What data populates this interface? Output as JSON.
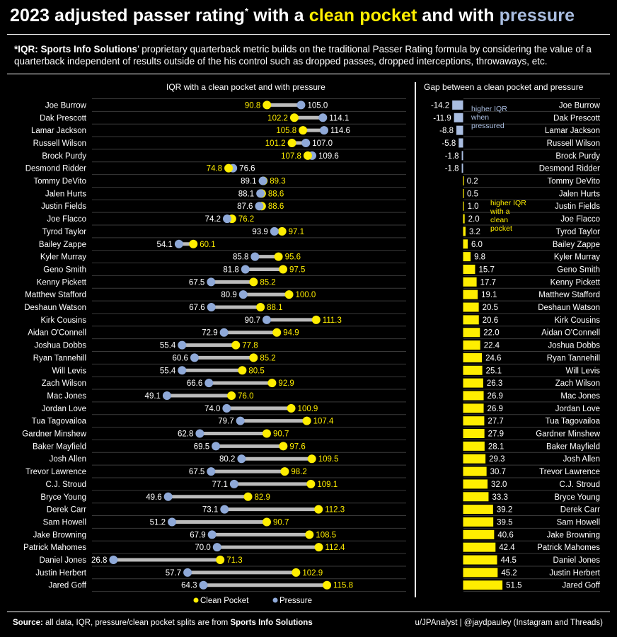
{
  "header": {
    "title_a": "2023 adjusted passer rating",
    "title_star": "*",
    "title_b": " with a ",
    "title_clean": "clean pocket",
    "title_c": " and with ",
    "title_pressure": "pressure",
    "subtitle_lead": "*IQR: Sports Info Solutions",
    "subtitle_text": "’ proprietary quarterback metric builds on the traditional Passer Rating formula by considering the value of a quarterback independent of results outside of the his control such as dropped passes, dropped interceptions, throwaways, etc."
  },
  "left_panel_title": "IQR with a clean pocket and with pressure",
  "right_panel_title": "Gap between a clean pocket  and pressure",
  "legend": {
    "clean": "Clean Pocket",
    "pressure": "Pressure"
  },
  "annotations": {
    "pressured": [
      "higher IQR",
      "when",
      "pressured"
    ],
    "clean": [
      "higher IQR",
      "with a",
      "clean",
      "pocket"
    ]
  },
  "footer": {
    "source_label": "Source:",
    "source_text": " all data, IQR, pressure/clean pocket splits are from ",
    "source_org": "Sports Info Solutions",
    "credit": "u/JPAnalyst  |  @jaydpauley (Instagram and Threads)"
  },
  "colors": {
    "clean": "#ffee00",
    "pressure": "#8fa9d8",
    "connector": "#bbbbbb",
    "gap_negative": "#a9bde0",
    "gap_positive": "#ffee00"
  },
  "chart_data": [
    {
      "type": "dumbbell",
      "title": "IQR with a clean pocket and with pressure",
      "series": [
        {
          "name": "Clean Pocket",
          "values": [
            90.8,
            102.2,
            105.8,
            101.2,
            107.8,
            74.8,
            89.3,
            88.6,
            88.6,
            76.2,
            97.1,
            60.1,
            95.6,
            97.5,
            85.2,
            100.0,
            88.1,
            111.3,
            94.9,
            77.8,
            85.2,
            80.5,
            92.9,
            76.0,
            100.9,
            107.4,
            90.7,
            97.6,
            109.5,
            98.2,
            109.1,
            82.9,
            112.3,
            90.7,
            108.5,
            112.4,
            71.3,
            102.9,
            115.8
          ]
        },
        {
          "name": "Pressure",
          "values": [
            105.0,
            114.1,
            114.6,
            107.0,
            109.6,
            76.6,
            89.1,
            88.1,
            87.6,
            74.2,
            93.9,
            54.1,
            85.8,
            81.8,
            67.5,
            80.9,
            67.6,
            90.7,
            72.9,
            55.4,
            60.6,
            55.4,
            66.6,
            49.1,
            74.0,
            79.7,
            62.8,
            69.5,
            80.2,
            67.5,
            77.1,
            49.6,
            73.1,
            51.2,
            67.9,
            70.0,
            26.8,
            57.7,
            64.3
          ]
        }
      ],
      "categories": [
        "Joe Burrow",
        "Dak Prescott",
        "Lamar Jackson",
        "Russell Wilson",
        "Brock Purdy",
        "Desmond Ridder",
        "Tommy DeVito",
        "Jalen Hurts",
        "Justin Fields",
        "Joe Flacco",
        "Tyrod Taylor",
        "Bailey Zappe",
        "Kyler Murray",
        "Geno Smith",
        "Kenny Pickett",
        "Matthew Stafford",
        "Deshaun Watson",
        "Kirk Cousins",
        "Aidan O'Connell",
        "Joshua Dobbs",
        "Ryan Tannehill",
        "Will Levis",
        "Zach Wilson",
        "Mac Jones",
        "Jordan Love",
        "Tua Tagovailoa",
        "Gardner Minshew",
        "Baker Mayfield",
        "Josh Allen",
        "Trevor Lawrence",
        "C.J. Stroud",
        "Bryce Young",
        "Derek Carr",
        "Sam Howell",
        "Jake Browning",
        "Patrick Mahomes",
        "Daniel Jones",
        "Justin Herbert",
        "Jared Goff"
      ],
      "xlim": [
        20,
        120
      ]
    },
    {
      "type": "bar",
      "title": "Gap between a clean pocket  and pressure",
      "categories": [
        "Joe Burrow",
        "Dak Prescott",
        "Lamar Jackson",
        "Russell Wilson",
        "Brock Purdy",
        "Desmond Ridder",
        "Tommy DeVito",
        "Jalen Hurts",
        "Justin Fields",
        "Joe Flacco",
        "Tyrod Taylor",
        "Bailey Zappe",
        "Kyler Murray",
        "Geno Smith",
        "Kenny Pickett",
        "Matthew Stafford",
        "Deshaun Watson",
        "Kirk Cousins",
        "Aidan O'Connell",
        "Joshua Dobbs",
        "Ryan Tannehill",
        "Will Levis",
        "Zach Wilson",
        "Mac Jones",
        "Jordan Love",
        "Tua Tagovailoa",
        "Gardner Minshew",
        "Baker Mayfield",
        "Josh Allen",
        "Trevor Lawrence",
        "C.J. Stroud",
        "Bryce Young",
        "Derek Carr",
        "Sam Howell",
        "Jake Browning",
        "Patrick Mahomes",
        "Daniel Jones",
        "Justin Herbert",
        "Jared Goff"
      ],
      "values": [
        -14.2,
        -11.9,
        -8.8,
        -5.8,
        -1.8,
        -1.8,
        0.2,
        0.5,
        1.0,
        2.0,
        3.2,
        6.0,
        9.8,
        15.7,
        17.7,
        19.1,
        20.5,
        20.6,
        22.0,
        22.4,
        24.6,
        25.1,
        26.3,
        26.9,
        26.9,
        27.7,
        27.9,
        28.1,
        29.3,
        30.7,
        32.0,
        33.3,
        39.2,
        39.5,
        40.6,
        42.4,
        44.5,
        45.2,
        51.5
      ],
      "value_labels": [
        "-14.2",
        "-11.9",
        "-8.8",
        "-5.8",
        "-1.8",
        "-1.8",
        "0.2",
        "0.5",
        "1.0",
        "2.0",
        "3.2",
        "6.0",
        "9.8",
        "15.7",
        "17.7",
        "19.1",
        "20.5",
        "20.6",
        "22.0",
        "22.4",
        "24.6",
        "25.1",
        "26.3",
        "26.9",
        "26.9",
        "27.7",
        "27.9",
        "28.1",
        "29.3",
        "30.7",
        "32.0",
        "33.3",
        "39.2",
        "39.5",
        "40.6",
        "42.4",
        "44.5",
        "45.2",
        "51.5"
      ]
    }
  ]
}
